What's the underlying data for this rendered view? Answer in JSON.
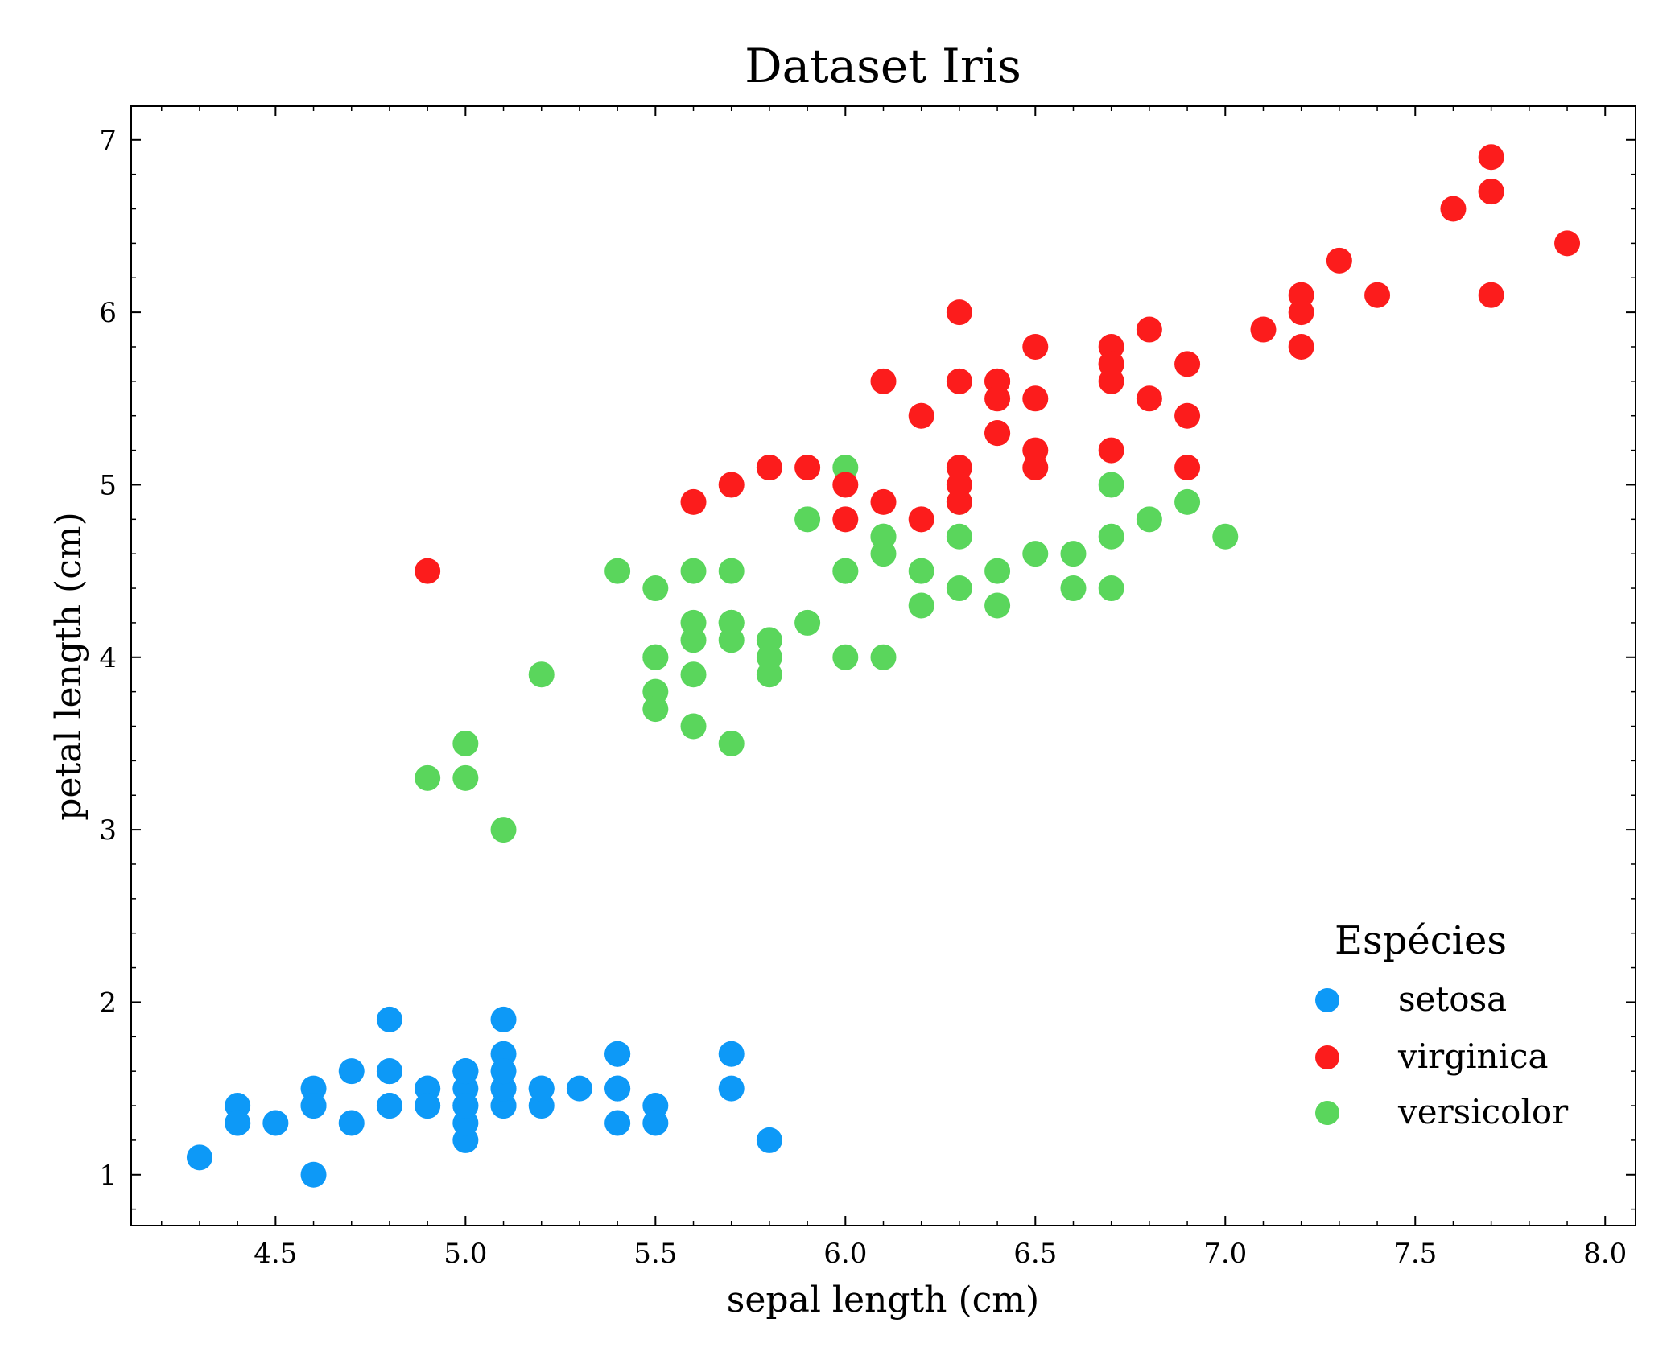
{
  "chart_data": {
    "type": "scatter",
    "title": "Dataset Iris",
    "xlabel": "sepal length (cm)",
    "ylabel": "petal length (cm)",
    "xlim": [
      4.12,
      8.08
    ],
    "ylim": [
      0.705,
      7.195
    ],
    "xticks": [
      "4.5",
      "5.0",
      "5.5",
      "6.0",
      "6.5",
      "7.0",
      "7.5",
      "8.0"
    ],
    "yticks": [
      "1",
      "2",
      "3",
      "4",
      "5",
      "6",
      "7"
    ],
    "grid": false,
    "legend": {
      "title": "Espécies",
      "placement": "lower-right"
    },
    "series": [
      {
        "name": "setosa",
        "color": "#0d99f7",
        "points": [
          [
            5.1,
            1.4
          ],
          [
            4.9,
            1.4
          ],
          [
            4.7,
            1.3
          ],
          [
            4.6,
            1.5
          ],
          [
            5.0,
            1.4
          ],
          [
            5.4,
            1.7
          ],
          [
            4.6,
            1.4
          ],
          [
            5.0,
            1.5
          ],
          [
            4.4,
            1.4
          ],
          [
            4.9,
            1.5
          ],
          [
            5.4,
            1.5
          ],
          [
            4.8,
            1.6
          ],
          [
            4.8,
            1.4
          ],
          [
            4.3,
            1.1
          ],
          [
            5.8,
            1.2
          ],
          [
            5.7,
            1.5
          ],
          [
            5.4,
            1.3
          ],
          [
            5.1,
            1.4
          ],
          [
            5.7,
            1.7
          ],
          [
            5.1,
            1.5
          ],
          [
            5.4,
            1.7
          ],
          [
            5.1,
            1.5
          ],
          [
            4.6,
            1.0
          ],
          [
            5.1,
            1.7
          ],
          [
            4.8,
            1.9
          ],
          [
            5.0,
            1.6
          ],
          [
            5.0,
            1.6
          ],
          [
            5.2,
            1.5
          ],
          [
            5.2,
            1.4
          ],
          [
            4.7,
            1.6
          ],
          [
            4.8,
            1.6
          ],
          [
            5.4,
            1.5
          ],
          [
            5.2,
            1.5
          ],
          [
            5.5,
            1.4
          ],
          [
            4.9,
            1.5
          ],
          [
            5.0,
            1.2
          ],
          [
            5.5,
            1.3
          ],
          [
            4.9,
            1.4
          ],
          [
            4.4,
            1.3
          ],
          [
            5.1,
            1.5
          ],
          [
            5.0,
            1.3
          ],
          [
            4.5,
            1.3
          ],
          [
            4.4,
            1.3
          ],
          [
            5.0,
            1.6
          ],
          [
            5.1,
            1.9
          ],
          [
            4.8,
            1.4
          ],
          [
            5.1,
            1.6
          ],
          [
            4.6,
            1.4
          ],
          [
            5.3,
            1.5
          ],
          [
            5.0,
            1.4
          ]
        ]
      },
      {
        "name": "virginica",
        "color": "#fc1c1c",
        "points": [
          [
            6.3,
            6.0
          ],
          [
            5.8,
            5.1
          ],
          [
            7.1,
            5.9
          ],
          [
            6.3,
            5.6
          ],
          [
            6.5,
            5.8
          ],
          [
            7.6,
            6.6
          ],
          [
            4.9,
            4.5
          ],
          [
            7.3,
            6.3
          ],
          [
            6.7,
            5.8
          ],
          [
            7.2,
            6.1
          ],
          [
            6.5,
            5.1
          ],
          [
            6.4,
            5.3
          ],
          [
            6.8,
            5.5
          ],
          [
            5.7,
            5.0
          ],
          [
            5.8,
            5.1
          ],
          [
            6.4,
            5.3
          ],
          [
            6.5,
            5.5
          ],
          [
            7.7,
            6.7
          ],
          [
            7.7,
            6.9
          ],
          [
            6.0,
            5.0
          ],
          [
            6.9,
            5.7
          ],
          [
            5.6,
            4.9
          ],
          [
            7.7,
            6.7
          ],
          [
            6.3,
            4.9
          ],
          [
            6.7,
            5.7
          ],
          [
            7.2,
            6.0
          ],
          [
            6.2,
            4.8
          ],
          [
            6.1,
            4.9
          ],
          [
            6.4,
            5.6
          ],
          [
            7.2,
            5.8
          ],
          [
            7.4,
            6.1
          ],
          [
            7.9,
            6.4
          ],
          [
            6.4,
            5.6
          ],
          [
            6.3,
            5.1
          ],
          [
            6.1,
            5.6
          ],
          [
            7.7,
            6.1
          ],
          [
            6.3,
            5.6
          ],
          [
            6.4,
            5.5
          ],
          [
            6.0,
            4.8
          ],
          [
            6.9,
            5.4
          ],
          [
            6.7,
            5.6
          ],
          [
            6.9,
            5.1
          ],
          [
            5.8,
            5.1
          ],
          [
            6.8,
            5.9
          ],
          [
            6.7,
            5.7
          ],
          [
            6.7,
            5.2
          ],
          [
            6.3,
            5.0
          ],
          [
            6.5,
            5.2
          ],
          [
            6.2,
            5.4
          ],
          [
            5.9,
            5.1
          ]
        ]
      },
      {
        "name": "versicolor",
        "color": "#5ad65c",
        "points": [
          [
            7.0,
            4.7
          ],
          [
            6.4,
            4.5
          ],
          [
            6.9,
            4.9
          ],
          [
            5.5,
            4.0
          ],
          [
            6.5,
            4.6
          ],
          [
            5.7,
            4.5
          ],
          [
            6.3,
            4.7
          ],
          [
            4.9,
            3.3
          ],
          [
            6.6,
            4.6
          ],
          [
            5.2,
            3.9
          ],
          [
            5.0,
            3.5
          ],
          [
            5.9,
            4.2
          ],
          [
            6.0,
            4.0
          ],
          [
            6.1,
            4.7
          ],
          [
            5.6,
            3.6
          ],
          [
            6.7,
            4.4
          ],
          [
            5.6,
            4.5
          ],
          [
            5.8,
            4.1
          ],
          [
            6.2,
            4.5
          ],
          [
            5.6,
            3.9
          ],
          [
            5.9,
            4.8
          ],
          [
            6.1,
            4.0
          ],
          [
            6.3,
            4.9
          ],
          [
            6.1,
            4.7
          ],
          [
            6.4,
            4.3
          ],
          [
            6.6,
            4.4
          ],
          [
            6.8,
            4.8
          ],
          [
            6.7,
            5.0
          ],
          [
            6.0,
            4.5
          ],
          [
            5.7,
            3.5
          ],
          [
            5.5,
            3.8
          ],
          [
            5.5,
            3.7
          ],
          [
            5.8,
            3.9
          ],
          [
            6.0,
            5.1
          ],
          [
            5.4,
            4.5
          ],
          [
            6.0,
            4.5
          ],
          [
            6.7,
            4.7
          ],
          [
            6.3,
            4.4
          ],
          [
            5.6,
            4.1
          ],
          [
            5.5,
            4.0
          ],
          [
            5.5,
            4.4
          ],
          [
            6.1,
            4.6
          ],
          [
            5.8,
            4.0
          ],
          [
            5.0,
            3.3
          ],
          [
            5.6,
            4.2
          ],
          [
            5.7,
            4.2
          ],
          [
            5.7,
            4.2
          ],
          [
            6.2,
            4.3
          ],
          [
            5.1,
            3.0
          ],
          [
            5.7,
            4.1
          ]
        ]
      }
    ]
  }
}
